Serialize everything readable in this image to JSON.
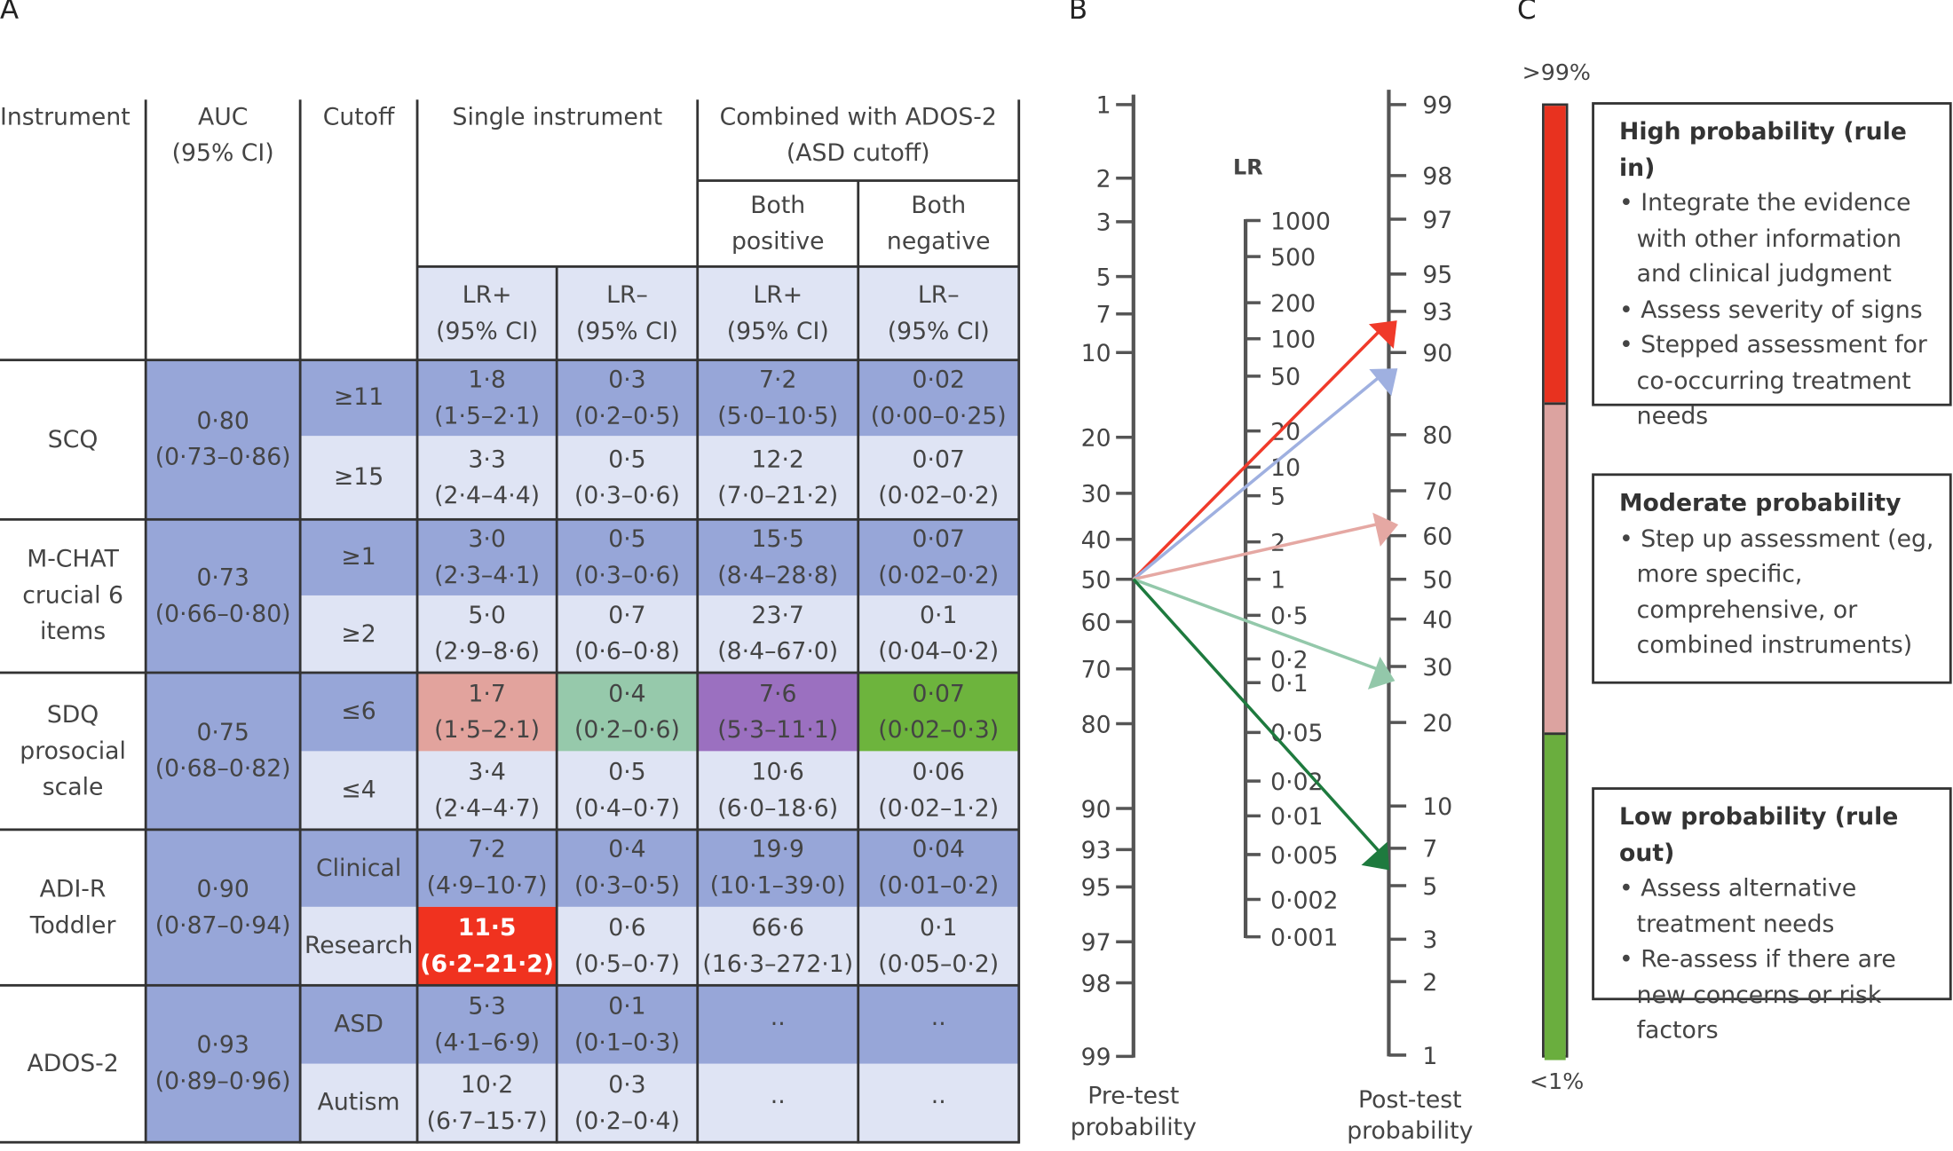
{
  "panels": {
    "a": "A",
    "b": "B",
    "c": "C"
  },
  "table": {
    "headers": {
      "instrument": "Instrument",
      "auc": "AUC\n(95% CI)",
      "cutoff": "Cutoff",
      "single": "Single instrument",
      "combined": "Combined with ADOS-2\n(ASD cutoff)",
      "both_positive": "Both\npositive",
      "both_negative": "Both\nnegative",
      "lr_pos": "LR+\n(95% CI)",
      "lr_neg": "LR–\n(95% CI)"
    },
    "groups": [
      {
        "instrument": "SCQ",
        "auc": "0·80\n(0·73–0·86)"
      },
      {
        "instrument": "M-CHAT\ncrucial 6\nitems",
        "auc": "0·73\n(0·66–0·80)"
      },
      {
        "instrument": "SDQ\nprosocial\nscale",
        "auc": "0·75\n(0·68–0·82)"
      },
      {
        "instrument": "ADI-R\nToddler",
        "auc": "0·90\n(0·87–0·94)"
      },
      {
        "instrument": "ADOS-2",
        "auc": "0·93\n(0·89–0·96)"
      }
    ],
    "rows": [
      {
        "cutoff": "≥11",
        "vals": [
          "1·8\n(1·5–2·1)",
          "0·3\n(0·2–0·5)",
          "7·2\n(5·0–10·5)",
          "0·02\n(0·00–0·25)"
        ]
      },
      {
        "cutoff": "≥15",
        "vals": [
          "3·3\n(2·4–4·4)",
          "0·5\n(0·3–0·6)",
          "12·2\n(7·0–21·2)",
          "0·07\n(0·02–0·2)"
        ]
      },
      {
        "cutoff": "≥1",
        "vals": [
          "3·0\n(2·3–4·1)",
          "0·5\n(0·3–0·6)",
          "15·5\n(8·4–28·8)",
          "0·07\n(0·02–0·2)"
        ]
      },
      {
        "cutoff": "≥2",
        "vals": [
          "5·0\n(2·9–8·6)",
          "0·7\n(0·6–0·8)",
          "23·7\n(8·4–67·0)",
          "0·1\n(0·04–0·2)"
        ]
      },
      {
        "cutoff": "≤6",
        "vals": [
          "1·7\n(1·5–2·1)",
          "0·4\n(0·2–0·6)",
          "7·6\n(5·3–11·1)",
          "0·07\n(0·02–0·3)"
        ],
        "highlight": [
          "#e2a39d",
          "#96c9ab",
          "#9b70c0",
          "#6db43d"
        ]
      },
      {
        "cutoff": "≤4",
        "vals": [
          "3·4\n(2·4–4·7)",
          "0·5\n(0·4–0·7)",
          "10·6\n(6·0–18·6)",
          "0·06\n(0·02–1·2)"
        ]
      },
      {
        "cutoff": "Clinical",
        "vals": [
          "7·2\n(4·9–10·7)",
          "0·4\n(0·3–0·5)",
          "19·9\n(10·1–39·0)",
          "0·04\n(0·01–0·2)"
        ]
      },
      {
        "cutoff": "Research",
        "vals": [
          "11·5\n(6·2–21·2)",
          "0·6\n(0·5–0·7)",
          "66·6\n(16·3–272·1)",
          "0·1\n(0·05–0·2)"
        ],
        "highlight": [
          "#f0321f",
          null,
          null,
          null
        ]
      },
      {
        "cutoff": "ASD",
        "vals": [
          "5·3\n(4·1–6·9)",
          "0·1\n(0·1–0·3)",
          "··",
          "··"
        ]
      },
      {
        "cutoff": "Autism",
        "vals": [
          "10·2\n(6·7–15·7)",
          "0·3\n(0·2–0·4)",
          "··",
          "··"
        ]
      }
    ]
  },
  "chart_data": {
    "type": "nomogram",
    "lr_label": "LR",
    "pre_label": "Pre-test\nprobability",
    "post_label": "Post-test\nprobability",
    "pre_ticks": [
      "1",
      "2",
      "3",
      "5",
      "7",
      "10",
      "20",
      "30",
      "40",
      "50",
      "60",
      "70",
      "80",
      "90",
      "93",
      "95",
      "97",
      "98",
      "99"
    ],
    "lr_ticks": [
      "1000",
      "500",
      "200",
      "100",
      "50",
      "20",
      "10",
      "5",
      "2",
      "1",
      "0·5",
      "0·2",
      "0·1",
      "0·05",
      "0·02",
      "0·01",
      "0·005",
      "0·002",
      "0·001"
    ],
    "post_ticks": [
      "99",
      "98",
      "97",
      "95",
      "93",
      "90",
      "80",
      "70",
      "60",
      "50",
      "40",
      "30",
      "20",
      "10",
      "7",
      "5",
      "3",
      "2",
      "1"
    ],
    "pre_test_probability": 50,
    "arrows": [
      {
        "lr": 11.5,
        "post": 92,
        "color": "#f03a2a"
      },
      {
        "lr": 7.6,
        "post": 88,
        "color": "#9fb0e0"
      },
      {
        "lr": 1.7,
        "post": 63,
        "color": "#e5a8a3"
      },
      {
        "lr": 0.4,
        "post": 29,
        "color": "#93c8aa"
      },
      {
        "lr": 0.07,
        "post": 6.5,
        "color": "#1e7a3e"
      }
    ]
  },
  "scale": {
    "top": ">99%",
    "bottom": "<1%",
    "colors": [
      "#e8321f",
      "#dca3a0",
      "#6aae3e"
    ]
  },
  "boxes": [
    {
      "title": "High probability (rule in)",
      "bullets": [
        "Integrate the evidence with other information and clinical judgment",
        "Assess severity of signs",
        "Stepped assessment for co-occurring treatment needs"
      ]
    },
    {
      "title": "Moderate probability",
      "bullets": [
        "Step up assessment (eg, more specific, comprehensive, or combined instruments)"
      ]
    },
    {
      "title": "Low probability (rule out)",
      "bullets": [
        "Assess alternative treatment needs",
        "Re-assess if there are new concerns or risk factors"
      ]
    }
  ]
}
